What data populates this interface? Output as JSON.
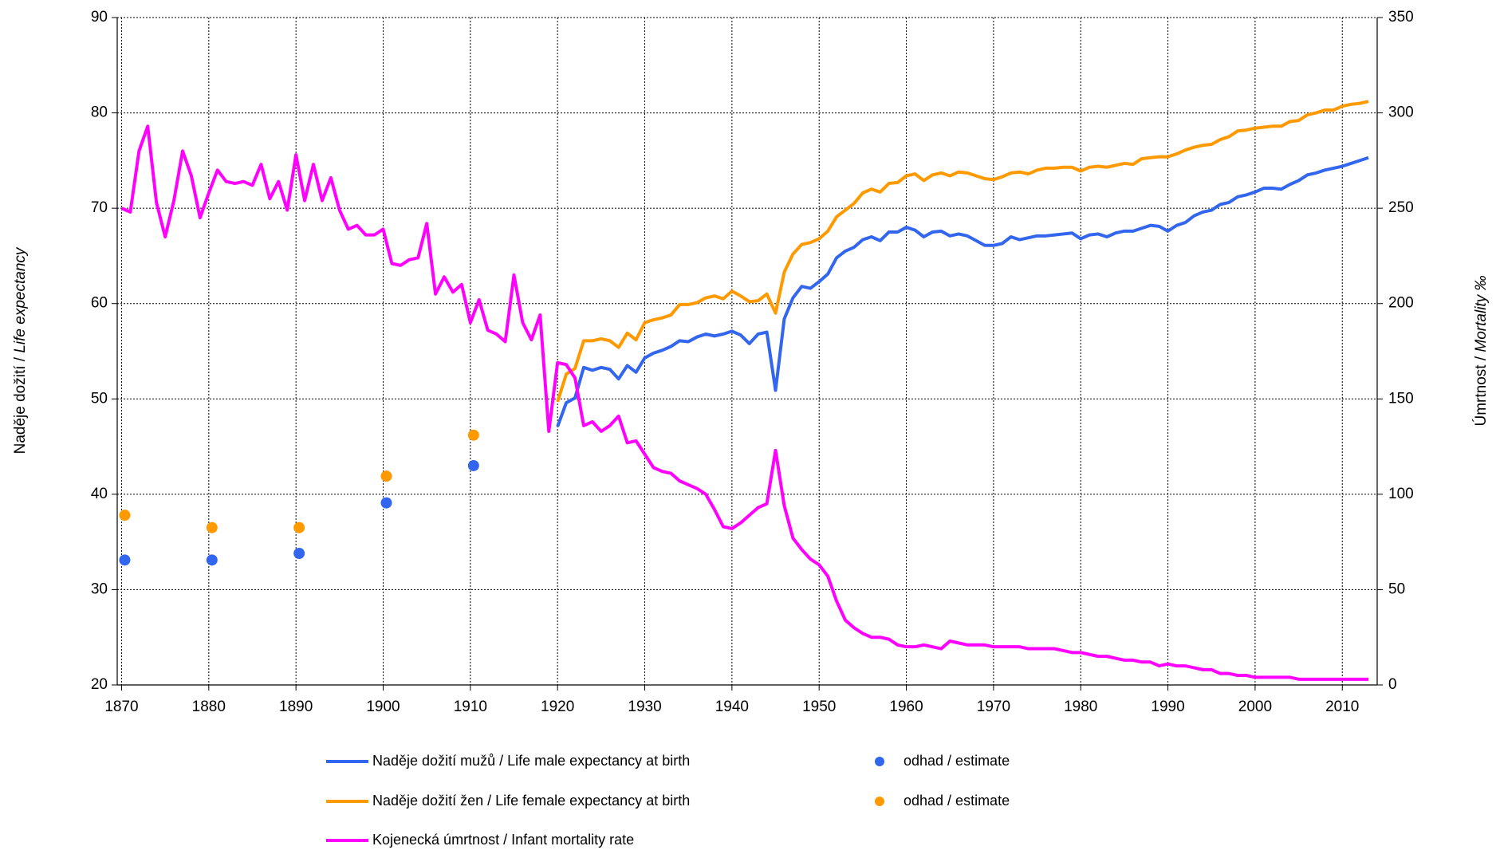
{
  "chart_data": {
    "type": "line",
    "ylabel": [
      "Naděje dožití / ",
      "Life expectancy"
    ],
    "y2label": [
      "Úmrtnost / ",
      "Mortality ‰"
    ],
    "xlim": [
      1869.5,
      2014
    ],
    "xticks": [
      1870,
      1880,
      1890,
      1900,
      1910,
      1920,
      1930,
      1940,
      1950,
      1960,
      1970,
      1980,
      1990,
      2000,
      2010
    ],
    "ylim": [
      20,
      90
    ],
    "yticks": [
      20,
      30,
      40,
      50,
      60,
      70,
      80,
      90
    ],
    "y2lim": [
      0,
      350
    ],
    "y2ticks": [
      0,
      50,
      100,
      150,
      200,
      250,
      300,
      350
    ],
    "grid": true,
    "series": [
      {
        "name": "Naděje dožití mužů / Life male expectancy at birth",
        "type": "line",
        "color": "#3366ee",
        "x": [
          1920,
          1921,
          1922,
          1923,
          1924,
          1925,
          1926,
          1927,
          1928,
          1929,
          1930,
          1931,
          1932,
          1933,
          1934,
          1935,
          1936,
          1937,
          1938,
          1939,
          1940,
          1941,
          1942,
          1943,
          1944,
          1945,
          1946,
          1947,
          1948,
          1949,
          1950,
          1951,
          1952,
          1953,
          1954,
          1955,
          1956,
          1957,
          1958,
          1959,
          1960,
          1961,
          1962,
          1963,
          1964,
          1965,
          1966,
          1967,
          1968,
          1969,
          1970,
          1971,
          1972,
          1973,
          1974,
          1975,
          1976,
          1977,
          1978,
          1979,
          1980,
          1981,
          1982,
          1983,
          1984,
          1985,
          1986,
          1987,
          1988,
          1989,
          1990,
          1991,
          1992,
          1993,
          1994,
          1995,
          1996,
          1997,
          1998,
          1999,
          2000,
          2001,
          2002,
          2003,
          2004,
          2005,
          2006,
          2007,
          2008,
          2009,
          2010,
          2011,
          2012,
          2013
        ],
        "values": [
          47.1,
          49.6,
          50.1,
          53.3,
          53.0,
          53.3,
          53.1,
          52.1,
          53.5,
          52.8,
          54.3,
          54.8,
          55.1,
          55.5,
          56.1,
          56.0,
          56.5,
          56.8,
          56.6,
          56.8,
          57.1,
          56.7,
          55.8,
          56.8,
          57.0,
          50.9,
          58.4,
          60.6,
          61.8,
          61.6,
          62.3,
          63.1,
          64.8,
          65.5,
          65.9,
          66.7,
          67.0,
          66.6,
          67.5,
          67.5,
          68.0,
          67.7,
          67.0,
          67.5,
          67.6,
          67.1,
          67.3,
          67.1,
          66.6,
          66.1,
          66.1,
          66.3,
          67.0,
          66.7,
          66.9,
          67.1,
          67.1,
          67.2,
          67.3,
          67.4,
          66.8,
          67.2,
          67.3,
          67.0,
          67.4,
          67.6,
          67.6,
          67.9,
          68.2,
          68.1,
          67.6,
          68.2,
          68.5,
          69.2,
          69.6,
          69.8,
          70.4,
          70.6,
          71.2,
          71.4,
          71.7,
          72.1,
          72.1,
          72.0,
          72.5,
          72.9,
          73.5,
          73.7,
          74.0,
          74.2,
          74.4,
          74.7,
          75.0,
          75.3
        ]
      },
      {
        "name": "odhad / estimate",
        "type": "scatter",
        "color": "#3366ee",
        "x": [
          1870,
          1880,
          1890,
          1900,
          1910
        ],
        "values": [
          33.1,
          33.1,
          33.8,
          39.1,
          43.0
        ]
      },
      {
        "name": "Naděje dožití žen / Life female expectancy at birth",
        "type": "line",
        "color": "#ff9900",
        "x": [
          1920,
          1921,
          1922,
          1923,
          1924,
          1925,
          1926,
          1927,
          1928,
          1929,
          1930,
          1931,
          1932,
          1933,
          1934,
          1935,
          1936,
          1937,
          1938,
          1939,
          1940,
          1941,
          1942,
          1943,
          1944,
          1945,
          1946,
          1947,
          1948,
          1949,
          1950,
          1951,
          1952,
          1953,
          1954,
          1955,
          1956,
          1957,
          1958,
          1959,
          1960,
          1961,
          1962,
          1963,
          1964,
          1965,
          1966,
          1967,
          1968,
          1969,
          1970,
          1971,
          1972,
          1973,
          1974,
          1975,
          1976,
          1977,
          1978,
          1979,
          1980,
          1981,
          1982,
          1983,
          1984,
          1985,
          1986,
          1987,
          1988,
          1989,
          1990,
          1991,
          1992,
          1993,
          1994,
          1995,
          1996,
          1997,
          1998,
          1999,
          2000,
          2001,
          2002,
          2003,
          2004,
          2005,
          2006,
          2007,
          2008,
          2009,
          2010,
          2011,
          2012,
          2013
        ],
        "values": [
          49.7,
          52.6,
          53.2,
          56.1,
          56.1,
          56.3,
          56.1,
          55.4,
          56.9,
          56.2,
          58.0,
          58.3,
          58.5,
          58.8,
          59.9,
          59.9,
          60.1,
          60.6,
          60.8,
          60.5,
          61.3,
          60.8,
          60.2,
          60.3,
          61.0,
          59.0,
          63.3,
          65.2,
          66.2,
          66.4,
          66.8,
          67.6,
          69.1,
          69.8,
          70.5,
          71.6,
          72.0,
          71.7,
          72.6,
          72.7,
          73.4,
          73.6,
          72.9,
          73.5,
          73.7,
          73.4,
          73.8,
          73.7,
          73.4,
          73.1,
          73.0,
          73.3,
          73.7,
          73.8,
          73.6,
          74.0,
          74.2,
          74.2,
          74.3,
          74.3,
          73.9,
          74.3,
          74.4,
          74.3,
          74.5,
          74.7,
          74.6,
          75.2,
          75.3,
          75.4,
          75.4,
          75.7,
          76.1,
          76.4,
          76.6,
          76.7,
          77.2,
          77.5,
          78.1,
          78.2,
          78.4,
          78.5,
          78.6,
          78.6,
          79.1,
          79.2,
          79.8,
          80.0,
          80.3,
          80.3,
          80.7,
          80.9,
          81.0,
          81.2
        ]
      },
      {
        "name": "odhad / estimate",
        "type": "scatter",
        "color": "#ff9900",
        "x": [
          1870,
          1880,
          1890,
          1900,
          1910
        ],
        "values": [
          37.8,
          36.5,
          36.5,
          41.9,
          46.2
        ]
      },
      {
        "name": "Kojenecká úmrtnost / Infant mortality rate",
        "type": "line",
        "color": "#ff00ff",
        "axis": "y2",
        "x": [
          1870,
          1871,
          1872,
          1873,
          1874,
          1875,
          1876,
          1877,
          1878,
          1879,
          1880,
          1881,
          1882,
          1883,
          1884,
          1885,
          1886,
          1887,
          1888,
          1889,
          1890,
          1891,
          1892,
          1893,
          1894,
          1895,
          1896,
          1897,
          1898,
          1899,
          1900,
          1901,
          1902,
          1903,
          1904,
          1905,
          1906,
          1907,
          1908,
          1909,
          1910,
          1911,
          1912,
          1913,
          1914,
          1915,
          1916,
          1917,
          1918,
          1919,
          1920,
          1921,
          1922,
          1923,
          1924,
          1925,
          1926,
          1927,
          1928,
          1929,
          1930,
          1931,
          1932,
          1933,
          1934,
          1935,
          1936,
          1937,
          1938,
          1939,
          1940,
          1941,
          1942,
          1943,
          1944,
          1945,
          1946,
          1947,
          1948,
          1949,
          1950,
          1951,
          1952,
          1953,
          1954,
          1955,
          1956,
          1957,
          1958,
          1959,
          1960,
          1961,
          1962,
          1963,
          1964,
          1965,
          1966,
          1967,
          1968,
          1969,
          1970,
          1971,
          1972,
          1973,
          1974,
          1975,
          1976,
          1977,
          1978,
          1979,
          1980,
          1981,
          1982,
          1983,
          1984,
          1985,
          1986,
          1987,
          1988,
          1989,
          1990,
          1991,
          1992,
          1993,
          1994,
          1995,
          1996,
          1997,
          1998,
          1999,
          2000,
          2001,
          2002,
          2003,
          2004,
          2005,
          2006,
          2007,
          2008,
          2009,
          2010,
          2011,
          2012,
          2013
        ],
        "values": [
          250,
          248,
          280,
          293,
          253,
          235,
          254,
          280,
          267,
          245,
          258,
          270,
          264,
          263,
          264,
          262,
          273,
          255,
          264,
          249,
          278,
          254,
          273,
          254,
          266,
          249,
          239,
          241,
          236,
          236,
          239,
          221,
          220,
          223,
          224,
          242,
          205,
          214,
          206,
          210,
          190,
          202,
          186,
          184,
          180,
          215,
          190,
          181,
          194,
          133,
          169,
          168,
          161,
          136,
          138,
          133,
          136,
          141,
          127,
          128,
          121,
          114,
          112,
          111,
          107,
          105,
          103,
          100,
          92,
          83,
          82,
          85,
          89,
          93,
          95,
          123,
          94,
          77,
          71,
          66,
          63,
          57,
          44,
          34,
          30,
          27,
          25,
          25,
          24,
          21,
          20,
          20,
          21,
          20,
          19,
          23,
          22,
          21,
          21,
          21,
          20,
          20,
          20,
          20,
          19,
          19,
          19,
          19,
          18,
          17,
          17,
          16,
          15,
          15,
          14,
          13,
          13,
          12,
          12,
          10,
          11,
          10,
          10,
          9,
          8,
          8,
          6,
          6,
          5,
          5,
          4,
          4,
          4,
          4,
          4,
          3,
          3,
          3,
          3,
          3,
          3,
          3,
          3,
          3
        ]
      }
    ]
  }
}
